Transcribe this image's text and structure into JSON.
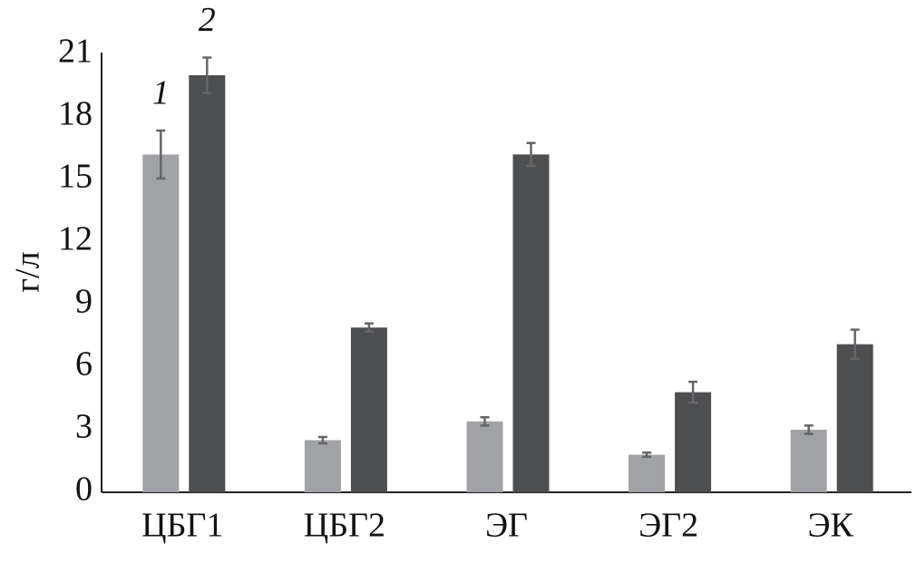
{
  "chart_data": {
    "type": "bar",
    "y_label": "г/л",
    "categories": [
      "ЦБГ1",
      "ЦБГ2",
      "ЭГ",
      "ЭГ2",
      "ЭК"
    ],
    "series": [
      {
        "name": "1",
        "color": "#a0a2a5",
        "values": [
          16.2,
          2.5,
          3.4,
          1.8,
          3.0
        ],
        "errors": [
          1.15,
          0.15,
          0.2,
          0.1,
          0.2
        ]
      },
      {
        "name": "2",
        "color": "#4d4e50",
        "values": [
          20.0,
          7.9,
          16.2,
          4.8,
          7.1
        ],
        "errors": [
          0.85,
          0.2,
          0.55,
          0.5,
          0.7
        ]
      }
    ],
    "ylim": [
      0,
      21
    ],
    "yticks": [
      0,
      3,
      6,
      9,
      12,
      15,
      18,
      21
    ],
    "grid": false
  }
}
